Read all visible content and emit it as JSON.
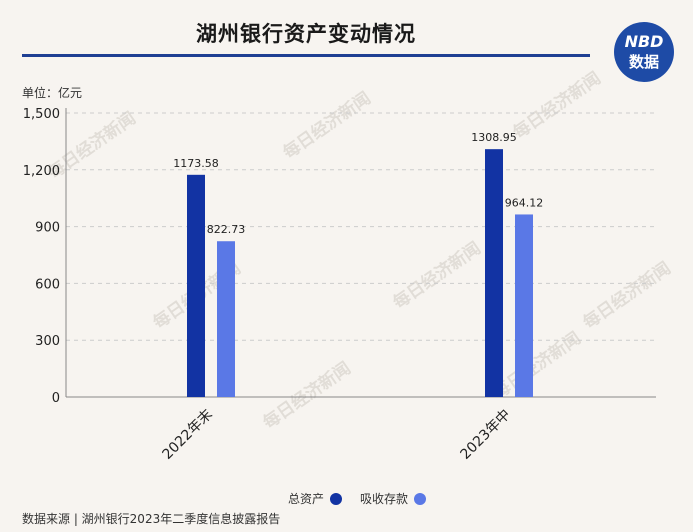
{
  "header": {
    "title": "湖州银行资产变动情况",
    "logo_top": "NBD",
    "logo_bottom": "数据"
  },
  "unit_label": "单位：亿元",
  "source": "数据来源 | 湖州银行2023年二季度信息披露报告",
  "watermark": "每日经济新闻",
  "colors": {
    "series_total_assets": "#1233a3",
    "series_deposits": "#5a78e6",
    "title_rule": "#1f3f93",
    "grid": "#cccccc"
  },
  "chart_data": {
    "type": "bar",
    "title": "湖州银行资产变动情况",
    "unit": "亿元",
    "categories": [
      "2022年末",
      "2023年中"
    ],
    "series": [
      {
        "name": "总资产",
        "values": [
          1173.58,
          1308.95
        ]
      },
      {
        "name": "吸收存款",
        "values": [
          822.73,
          964.12
        ]
      }
    ],
    "yticks": [
      "0",
      "300",
      "600",
      "900",
      "1,200",
      "1,500"
    ],
    "ylim": [
      0,
      1500
    ],
    "grid": true,
    "legend": "bottom-center"
  }
}
